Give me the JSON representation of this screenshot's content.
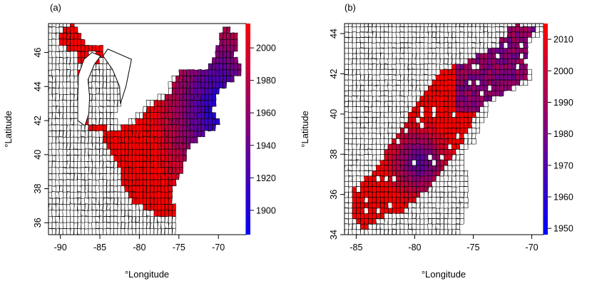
{
  "panels": [
    {
      "id": "a",
      "label": "(a)",
      "xlabel": "°Longitude",
      "ylabel": "°Latitude",
      "xlim": [
        -91.5,
        -66.5
      ],
      "ylim": [
        35.3,
        47.7
      ],
      "xticks": [
        "-90",
        "-85",
        "-80",
        "-75",
        "-70"
      ],
      "xtick_values": [
        -90,
        -85,
        -80,
        -75,
        -70
      ],
      "yticks": [
        "36",
        "38",
        "40",
        "42",
        "44",
        "46"
      ],
      "ytick_values": [
        36,
        38,
        40,
        42,
        44,
        46
      ],
      "colorbar": {
        "range": [
          1885,
          2015
        ],
        "ticks": [
          "1900",
          "1920",
          "1940",
          "1960",
          "1980",
          "2000"
        ],
        "tick_values": [
          1900,
          1920,
          1940,
          1960,
          1980,
          2000
        ],
        "low_color": "#0000ff",
        "high_color": "#ff0000"
      }
    },
    {
      "id": "b",
      "label": "(b)",
      "xlabel": "°Longitude",
      "ylabel": "°Latitude",
      "xlim": [
        -86,
        -69
      ],
      "ylim": [
        34,
        44.5
      ],
      "xticks": [
        "-85",
        "-80",
        "-75",
        "-70"
      ],
      "xtick_values": [
        -85,
        -80,
        -75,
        -70
      ],
      "yticks": [
        "34",
        "36",
        "38",
        "40",
        "42",
        "44"
      ],
      "ytick_values": [
        34,
        36,
        38,
        40,
        42,
        44
      ],
      "colorbar": {
        "range": [
          1948,
          2015
        ],
        "ticks": [
          "1950",
          "1960",
          "1970",
          "1980",
          "1990",
          "2000",
          "2010"
        ],
        "tick_values": [
          1950,
          1960,
          1970,
          1980,
          1990,
          2000,
          2010
        ],
        "low_color": "#0000ff",
        "high_color": "#ff0000"
      }
    }
  ]
}
